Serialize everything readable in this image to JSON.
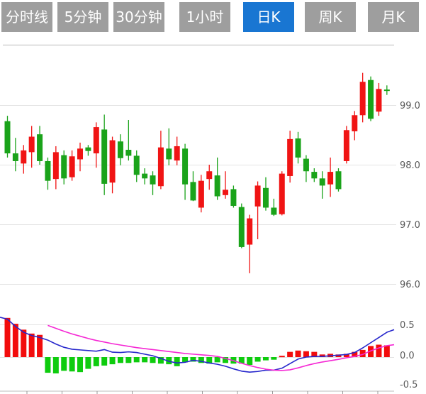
{
  "tabs": [
    {
      "label": "分时线",
      "active": false
    },
    {
      "label": "5分钟",
      "active": false
    },
    {
      "label": "30分钟",
      "active": false
    },
    {
      "label": "1小时",
      "active": false
    },
    {
      "label": "日K",
      "active": true
    },
    {
      "label": "周K",
      "active": false
    },
    {
      "label": "月K",
      "active": false
    }
  ],
  "colors": {
    "tab_bg": "#9e9e9e",
    "tab_active_bg": "#1976d2",
    "tab_text": "#ffffff",
    "candle_up": "#1aa31a",
    "candle_down": "#f01414",
    "macd_bar_pos": "#f20c0c",
    "macd_bar_neg": "#0ecc0e",
    "dif_line": "#2626cc",
    "dea_line": "#f527d4",
    "grid": "#e3e3e3",
    "panel_border": "#c9c9c9",
    "axis_text": "#595959",
    "axis_tick": "#999999"
  },
  "chart_data": {
    "type": "candlestick",
    "title": "",
    "legend_position": "none",
    "grid": true,
    "panels": [
      {
        "name": "price",
        "y_ticks": [
          "99.0",
          "98.0",
          "97.0",
          "96.0"
        ],
        "y_tick_values": [
          99.0,
          98.0,
          97.0,
          96.0
        ],
        "y_range": [
          95.7,
          100.0
        ],
        "candles_ohlc": [
          [
            98.19,
            98.82,
            98.12,
            98.73
          ],
          [
            98.06,
            98.45,
            97.89,
            98.19
          ],
          [
            98.24,
            98.33,
            97.85,
            98.02
          ],
          [
            98.47,
            98.65,
            97.95,
            98.21
          ],
          [
            98.06,
            98.65,
            98.0,
            98.51
          ],
          [
            97.73,
            98.12,
            97.58,
            98.06
          ],
          [
            98.21,
            98.31,
            97.59,
            97.76
          ],
          [
            97.77,
            98.24,
            97.67,
            98.16
          ],
          [
            98.14,
            98.24,
            97.73,
            97.79
          ],
          [
            98.27,
            98.37,
            97.89,
            98.09
          ],
          [
            98.23,
            98.33,
            98.15,
            98.29
          ],
          [
            98.63,
            98.71,
            97.95,
            98.19
          ],
          [
            97.68,
            98.84,
            97.49,
            98.59
          ],
          [
            98.41,
            98.47,
            97.52,
            97.7
          ],
          [
            98.11,
            98.51,
            97.99,
            98.39
          ],
          [
            98.15,
            98.75,
            98.07,
            98.25
          ],
          [
            97.83,
            98.24,
            97.71,
            98.15
          ],
          [
            97.77,
            97.94,
            97.67,
            97.85
          ],
          [
            97.67,
            97.89,
            97.49,
            97.82
          ],
          [
            98.29,
            98.57,
            97.59,
            97.64
          ],
          [
            98.09,
            98.61,
            97.99,
            98.27
          ],
          [
            98.31,
            98.47,
            97.99,
            98.07
          ],
          [
            97.67,
            98.35,
            97.41,
            98.27
          ],
          [
            97.4,
            97.89,
            97.39,
            97.71
          ],
          [
            97.73,
            97.83,
            97.2,
            97.28
          ],
          [
            97.89,
            98.0,
            97.58,
            97.76
          ],
          [
            97.47,
            98.12,
            97.41,
            97.82
          ],
          [
            97.58,
            97.89,
            97.43,
            97.49
          ],
          [
            97.31,
            97.65,
            97.28,
            97.59
          ],
          [
            96.62,
            97.35,
            96.6,
            97.29
          ],
          [
            97.1,
            97.16,
            96.18,
            96.66
          ],
          [
            97.65,
            97.72,
            96.75,
            97.3
          ],
          [
            97.28,
            97.79,
            97.23,
            97.61
          ],
          [
            97.16,
            97.43,
            97.14,
            97.28
          ],
          [
            97.85,
            97.89,
            97.15,
            97.17
          ],
          [
            98.43,
            98.57,
            97.7,
            97.81
          ],
          [
            98.12,
            98.55,
            98.02,
            98.44
          ],
          [
            97.89,
            98.16,
            97.71,
            98.1
          ],
          [
            97.77,
            97.94,
            97.71,
            97.88
          ],
          [
            97.65,
            97.89,
            97.43,
            97.77
          ],
          [
            97.88,
            98.12,
            97.46,
            97.67
          ],
          [
            97.59,
            97.94,
            97.55,
            97.89
          ],
          [
            98.58,
            98.65,
            98.02,
            98.06
          ],
          [
            98.83,
            98.9,
            98.41,
            98.56
          ],
          [
            99.39,
            99.54,
            98.71,
            98.83
          ],
          [
            98.77,
            99.48,
            98.73,
            99.42
          ],
          [
            99.27,
            99.37,
            98.82,
            98.89
          ],
          [
            99.24,
            99.33,
            99.17,
            99.26
          ]
        ]
      },
      {
        "name": "macd",
        "y_ticks": [
          "0.5",
          "0.0",
          "-0.5"
        ],
        "y_tick_values": [
          0.5,
          0.0,
          -0.5
        ],
        "y_range": [
          -0.55,
          0.62
        ],
        "histogram": [
          0.6,
          0.51,
          0.42,
          0.36,
          0.34,
          -0.24,
          -0.25,
          -0.21,
          -0.22,
          -0.23,
          -0.18,
          -0.14,
          -0.13,
          -0.11,
          -0.09,
          -0.09,
          -0.08,
          -0.08,
          -0.09,
          -0.1,
          -0.11,
          -0.14,
          -0.08,
          -0.07,
          -0.09,
          -0.1,
          -0.08,
          -0.09,
          -0.1,
          -0.1,
          -0.12,
          -0.07,
          -0.05,
          -0.04,
          0.02,
          0.08,
          0.1,
          0.09,
          0.08,
          0.04,
          0.05,
          0.04,
          0.05,
          0.08,
          0.11,
          0.17,
          0.19,
          0.18
        ],
        "dif": [
          0.58,
          0.47,
          0.38,
          0.33,
          0.3,
          0.26,
          0.2,
          0.15,
          0.12,
          0.11,
          0.1,
          0.09,
          0.115,
          0.075,
          0.07,
          0.08,
          0.07,
          0.045,
          0.02,
          -0.02,
          -0.065,
          -0.09,
          -0.08,
          -0.05,
          -0.065,
          -0.09,
          -0.11,
          -0.14,
          -0.18,
          -0.215,
          -0.23,
          -0.22,
          -0.2,
          -0.2,
          -0.17,
          -0.1,
          -0.03,
          0.0,
          0.01,
          0.01,
          0.02,
          0.03,
          0.04,
          0.07,
          0.14,
          0.22,
          0.3,
          0.38
        ],
        "dea": [
          null,
          null,
          null,
          null,
          null,
          0.485,
          0.44,
          0.395,
          0.355,
          0.32,
          0.285,
          0.255,
          0.23,
          0.205,
          0.185,
          0.165,
          0.145,
          0.13,
          0.115,
          0.1,
          0.085,
          0.07,
          0.055,
          0.045,
          0.035,
          0.025,
          0.01,
          -0.02,
          -0.055,
          -0.095,
          -0.13,
          -0.16,
          -0.185,
          -0.2,
          -0.205,
          -0.195,
          -0.165,
          -0.13,
          -0.1,
          -0.075,
          -0.055,
          -0.035,
          -0.01,
          0.01,
          0.04,
          0.095,
          0.14,
          0.175
        ],
        "dif_left_edge": 0.61,
        "dif_right_edge": 0.42,
        "dea_right_edge": 0.19
      }
    ]
  }
}
